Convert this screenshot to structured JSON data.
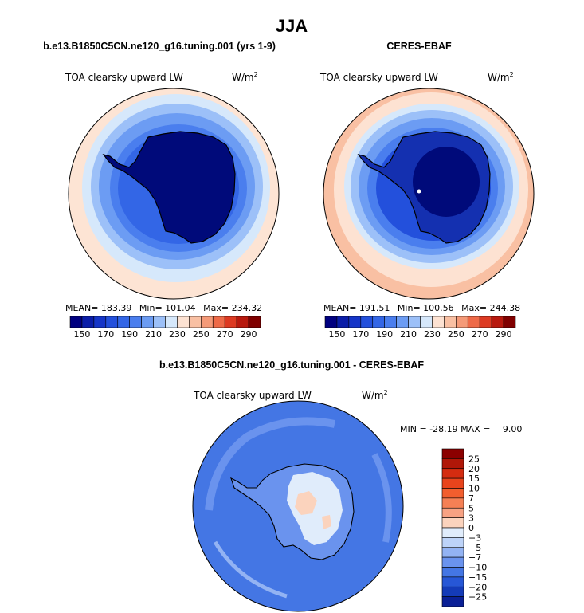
{
  "main_title": "JJA",
  "chart_data": [
    {
      "type": "polar-contour-map",
      "title": "b.e13.B1850C5CN.ne120_g16.tuning.001 (yrs 1-9)",
      "field_label": "TOA clearsky upward LW",
      "units_base": "W/m",
      "units_exp": "2",
      "stats": {
        "mean_label": "MEAN=",
        "mean": "183.39",
        "min_label": "Min=",
        "min": "101.04",
        "max_label": "Max=",
        "max": "234.32"
      },
      "colorbar": {
        "levels": [
          150,
          160,
          170,
          180,
          190,
          200,
          210,
          220,
          230,
          240,
          250,
          260,
          270,
          280,
          290
        ],
        "tick_labels": [
          "150",
          "170",
          "190",
          "210",
          "230",
          "250",
          "270",
          "290"
        ],
        "colors": [
          "#000080",
          "#0a1da8",
          "#1535c8",
          "#2350dc",
          "#3366e6",
          "#4a7eee",
          "#6c9cf3",
          "#9cc0f8",
          "#d6e8fb",
          "#fde2d2",
          "#f9c0a3",
          "#f59a78",
          "#ee6a48",
          "#dd3a22",
          "#b8190e",
          "#800000"
        ]
      }
    },
    {
      "type": "polar-contour-map",
      "title": "CERES-EBAF",
      "field_label": "TOA clearsky upward LW",
      "units_base": "W/m",
      "units_exp": "2",
      "stats": {
        "mean_label": "MEAN=",
        "mean": "191.51",
        "min_label": "Min=",
        "min": "100.56",
        "max_label": "Max=",
        "max": "244.38"
      },
      "colorbar": {
        "levels": [
          150,
          160,
          170,
          180,
          190,
          200,
          210,
          220,
          230,
          240,
          250,
          260,
          270,
          280,
          290
        ],
        "tick_labels": [
          "150",
          "170",
          "190",
          "210",
          "230",
          "250",
          "270",
          "290"
        ],
        "colors": [
          "#000080",
          "#0a1da8",
          "#1535c8",
          "#2350dc",
          "#3366e6",
          "#4a7eee",
          "#6c9cf3",
          "#9cc0f8",
          "#d6e8fb",
          "#fde2d2",
          "#f9c0a3",
          "#f59a78",
          "#ee6a48",
          "#dd3a22",
          "#b8190e",
          "#800000"
        ]
      }
    },
    {
      "type": "polar-contour-map",
      "title": "b.e13.B1850C5CN.ne120_g16.tuning.001 - CERES-EBAF",
      "field_label": "TOA clearsky upward LW",
      "units_base": "W/m",
      "units_exp": "2",
      "stats_text": {
        "min_label": "MIN =",
        "min": "-28.19",
        "max_label": "MAX =",
        "max": "9.00"
      },
      "colorbar": {
        "orientation": "vertical",
        "tick_labels": [
          "25",
          "20",
          "15",
          "10",
          "7",
          "5",
          "3",
          "0",
          "−3",
          "−5",
          "−7",
          "−10",
          "−15",
          "−20",
          "−25"
        ],
        "colors": [
          "#8b0000",
          "#b01708",
          "#d42c10",
          "#e8441c",
          "#f25e2e",
          "#f58055",
          "#f7a283",
          "#fbd3bd",
          "#e0ecfb",
          "#bdd3f8",
          "#93b3f3",
          "#6a93ee",
          "#4476e4",
          "#2757d6",
          "#143bb8",
          "#0a2096"
        ]
      }
    }
  ]
}
